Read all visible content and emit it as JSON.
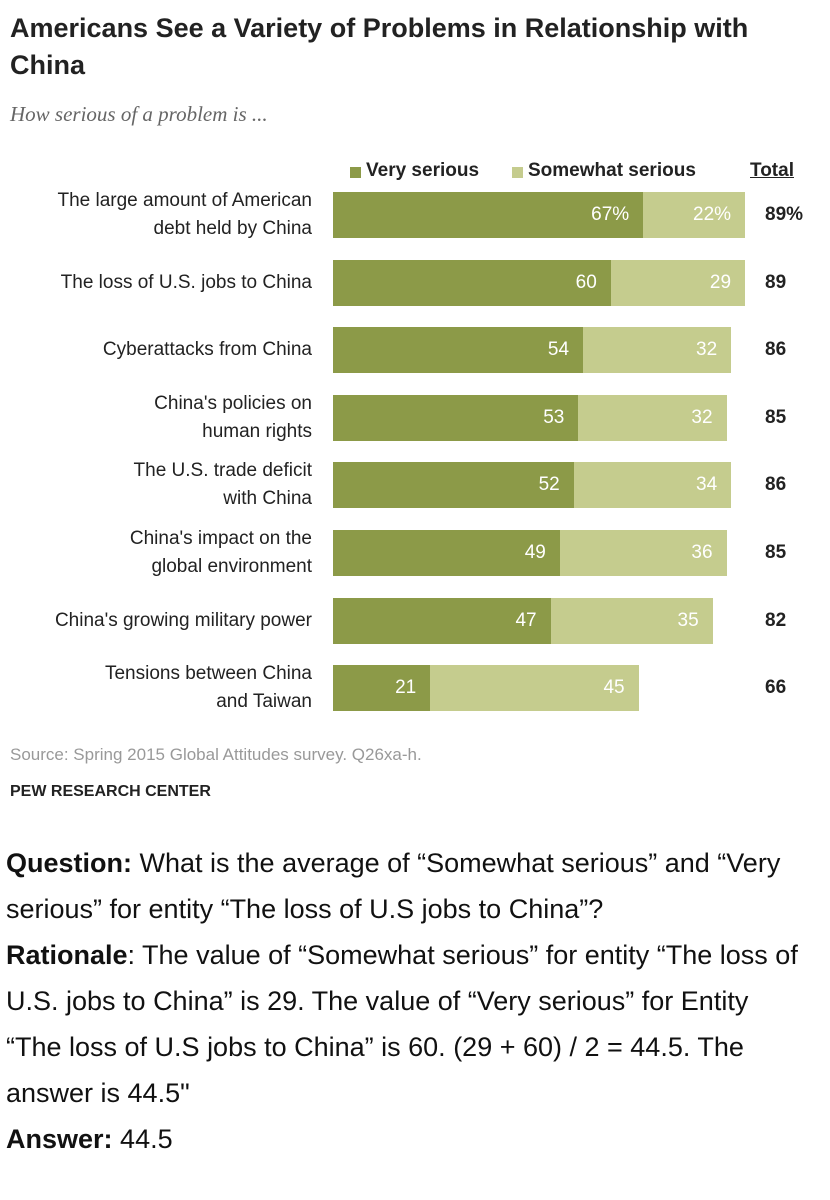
{
  "chart_data": {
    "type": "stacked-bar-horizontal",
    "title": "Americans See a Variety of Problems in Relationship with China",
    "subtitle": "How serious of a problem is ...",
    "categories": [
      "The large amount of American\ndebt held by China",
      "The loss of U.S. jobs to China",
      "Cyberattacks from China",
      "China's policies on\nhuman rights",
      "The U.S. trade deficit\nwith China",
      "China's impact on the\nglobal environment",
      "China's growing military power",
      "Tensions between China\nand Taiwan"
    ],
    "series": [
      {
        "name": "Very serious",
        "color": "#8c9a48",
        "values": [
          67,
          60,
          54,
          53,
          52,
          49,
          47,
          21
        ],
        "value_labels": [
          "67%",
          "60",
          "54",
          "53",
          "52",
          "49",
          "47",
          "21"
        ]
      },
      {
        "name": "Somewhat serious",
        "color": "#c5cc8e",
        "values": [
          22,
          29,
          32,
          32,
          34,
          36,
          35,
          45
        ],
        "value_labels": [
          "22%",
          "29",
          "32",
          "32",
          "34",
          "36",
          "35",
          "45"
        ]
      }
    ],
    "total": {
      "name": "Total",
      "values": [
        89,
        89,
        86,
        85,
        86,
        85,
        82,
        66
      ],
      "value_labels": [
        "89%",
        "89",
        "86",
        "85",
        "86",
        "85",
        "82",
        "66"
      ]
    },
    "source": "Source: Spring 2015 Global Attitudes survey. Q26xa-h.",
    "credit": "PEW RESEARCH CENTER"
  },
  "question": {
    "label": "Question:",
    "text": "What is the average of “Somewhat serious” and “Very serious” for entity “The loss of U.S jobs to China”?"
  },
  "rationale": {
    "label": "Rationale",
    "text": ": The value of “Somewhat serious” for entity “The loss of U.S. jobs to China” is 29. The value of “Very serious” for Entity “The loss of U.S jobs to China” is 60. (29 + 60) / 2 = 44.5. The answer is 44.5\""
  },
  "answer": {
    "label": "Answer:",
    "text": "44.5"
  }
}
